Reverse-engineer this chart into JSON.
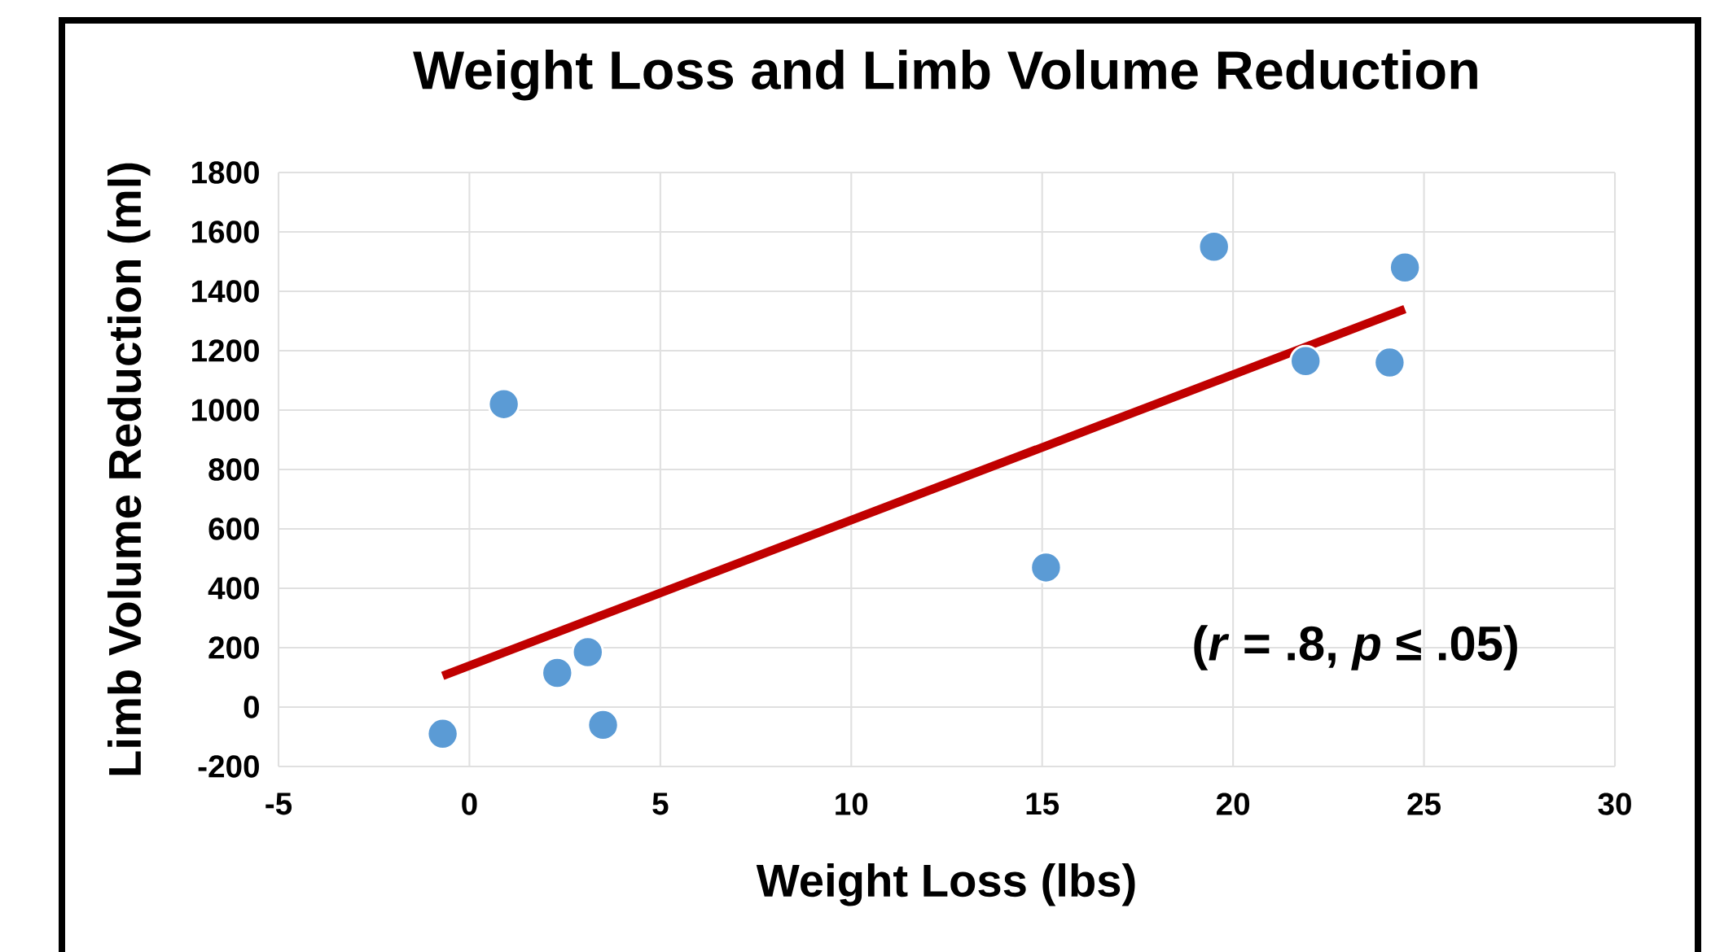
{
  "chart_data": {
    "type": "scatter",
    "title": "Weight Loss and Limb Volume Reduction",
    "xlabel": "Weight Loss (lbs)",
    "ylabel": "Limb Volume Reduction (ml)",
    "xlim": [
      -5,
      30
    ],
    "xticks": [
      -5,
      0,
      5,
      10,
      15,
      20,
      25,
      30
    ],
    "ylim": [
      -200,
      1800
    ],
    "yticks": [
      -200,
      0,
      200,
      400,
      600,
      800,
      1000,
      1200,
      1400,
      1600,
      1800
    ],
    "grid": true,
    "series": [
      {
        "type": "scatter",
        "marker": "circle",
        "color": "#5b9bd5",
        "x": [
          -0.7,
          0.9,
          2.3,
          3.1,
          3.5,
          15.1,
          19.5,
          21.9,
          24.1,
          24.5
        ],
        "values": [
          -90,
          1020,
          115,
          185,
          -60,
          470,
          1550,
          1165,
          1160,
          1480
        ]
      },
      {
        "type": "line",
        "marker": "none",
        "color": "#c00000",
        "x": [
          -0.7,
          24.5
        ],
        "values": [
          105,
          1340
        ]
      }
    ],
    "annotations": [
      "(*r* = .8, *p* ≤ .05)"
    ]
  }
}
